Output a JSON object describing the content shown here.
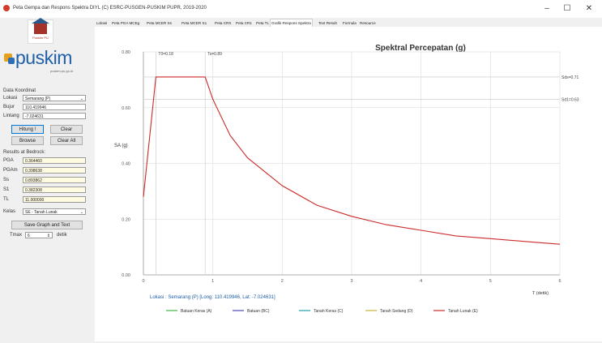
{
  "window": {
    "title": "Peta Gempa dan Respons Spektra DIYL (C) ESRC-PUSGEN-PUSKIM PUPR, 2019-2020",
    "minimize_glyph": "–",
    "maximize_glyph": "☐",
    "close_glyph": "✕"
  },
  "sidebar": {
    "logo_caption": "Puskim PU",
    "brand": "puskim",
    "brand_sub": "puskim.pu.go.id",
    "coords_heading": "Data Koordinat",
    "location_label": "Lokasi",
    "location_value": "Semarang (P)",
    "lon_label": "Bujur",
    "lon_value": "110.419946",
    "lat_label": "Lintang",
    "lat_value": "-7.024631",
    "compute_button": "Hitung !",
    "clear_button": "Clear",
    "browse_button": "Browse",
    "clearall_button": "Clear All",
    "results_heading": "Results at Bedrock:",
    "results": [
      {
        "label": "PGA",
        "value": "0.364460"
      },
      {
        "label": "PGAm",
        "value": "0.398638"
      },
      {
        "label": "Ss",
        "value": "0.893862"
      },
      {
        "label": "S1",
        "value": "0.382308"
      },
      {
        "label": "TL",
        "value": "11.000000"
      }
    ],
    "site_label": "Kelas",
    "site_value": "SE - Tanah Lunak",
    "save_button": "Save Graph and Text",
    "tmax_label": "Tmax",
    "tmax_value": "6",
    "tmax_unit": "detik"
  },
  "tabs": [
    {
      "label": "Lokasi",
      "active": false
    },
    {
      "label": "Peta PGA MCEg",
      "active": false
    },
    {
      "label": "Peta MCER Ss",
      "active": false
    },
    {
      "label": "Peta MCER S1",
      "active": false
    },
    {
      "label": "Peta CRS",
      "active": false
    },
    {
      "label": "Peta CR1",
      "active": false
    },
    {
      "label": "Peta TL",
      "active": false
    },
    {
      "label": "Grafik Respons Spektra",
      "active": true
    },
    {
      "label": "Text Result",
      "active": false
    },
    {
      "label": "Formula",
      "active": false
    },
    {
      "label": "Resource",
      "active": false
    }
  ],
  "chart_data": {
    "type": "line",
    "title": "Spektral Percepatan (g)",
    "ylabel": "SA (g)",
    "xlabel": "T (detik)",
    "xlim": [
      0,
      6
    ],
    "ylim": [
      0,
      0.8
    ],
    "x_ticks": [
      "0",
      "1",
      "2",
      "3",
      "4",
      "5",
      "6"
    ],
    "y_ticks": [
      "0.00",
      "0.20",
      "0.40",
      "0.60",
      "0.80"
    ],
    "grid": true,
    "location_caption": "Lokasi : Semarang (P) [Long: 110.419946, Lat: -7.024631]",
    "annotations": [
      {
        "text": "T0=0.18",
        "x": 0.18,
        "y": 0.8
      },
      {
        "text": "Ts=0.89",
        "x": 0.89,
        "y": 0.8
      },
      {
        "text": "Sds=0.71",
        "x": 6,
        "y": 0.71
      },
      {
        "text": "Sd1=0.63",
        "x": 6,
        "y": 0.63
      }
    ],
    "legend_position": "bottom",
    "series": [
      {
        "name": "Batuan Keras (A)",
        "color": "#44b844",
        "values": []
      },
      {
        "name": "Batuan (BC)",
        "color": "#5046b8",
        "values": []
      },
      {
        "name": "Tanah Keras (C)",
        "color": "#1aa0a8",
        "values": []
      },
      {
        "name": "Tanah Sedang (D)",
        "color": "#c8b43a",
        "values": []
      },
      {
        "name": "Tanah Lunak (E)",
        "color": "#cc2a2a",
        "x": [
          0,
          0.18,
          0.89,
          1.0,
          1.25,
          1.5,
          2.0,
          2.5,
          3.0,
          3.5,
          4.0,
          4.5,
          5.0,
          5.5,
          6.0
        ],
        "values": [
          0.28,
          0.71,
          0.71,
          0.63,
          0.5,
          0.42,
          0.32,
          0.25,
          0.21,
          0.18,
          0.16,
          0.14,
          0.13,
          0.12,
          0.11
        ]
      }
    ]
  }
}
